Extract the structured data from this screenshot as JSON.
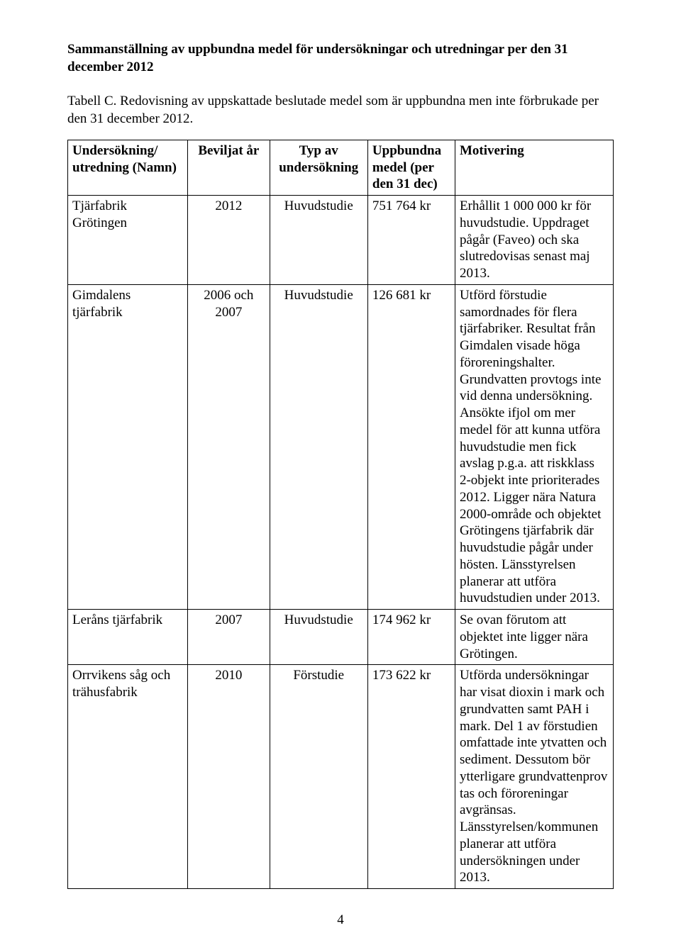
{
  "heading": "Sammanställning av uppbundna medel för undersökningar och utredningar per den 31 december 2012",
  "intro": "Tabell C. Redovisning av uppskattade beslutade medel som är uppbundna men inte förbrukade per den 31 december 2012.",
  "table": {
    "columns": [
      "Undersökning/ utredning (Namn)",
      "Beviljat år",
      "Typ av undersökning",
      "Uppbundna medel (per den 31 dec)",
      "Motivering"
    ],
    "col_align": [
      "left",
      "center",
      "center",
      "left",
      "left"
    ],
    "header_align": [
      "left",
      "center",
      "center",
      "left",
      "left"
    ],
    "rows": [
      {
        "name": "Tjärfabrik Grötingen",
        "year": "2012",
        "type": "Huvudstudie",
        "amount": "751 764 kr",
        "motivation": "Erhållit 1 000 000 kr för huvudstudie. Uppdraget pågår (Faveo) och ska slutredovisas senast maj 2013."
      },
      {
        "name": "Gimdalens tjärfabrik",
        "year": "2006 och 2007",
        "type": "Huvudstudie",
        "amount": "126 681 kr",
        "motivation": "Utförd förstudie samordnades för flera tjärfabriker. Resultat från Gimdalen visade höga föroreningshalter. Grundvatten provtogs inte vid denna undersökning. Ansökte ifjol om mer medel för att kunna utföra huvudstudie men fick avslag p.g.a. att riskklass 2-objekt inte prioriterades 2012. Ligger nära Natura 2000-område och objektet Grötingens tjärfabrik där huvudstudie pågår under hösten. Länsstyrelsen planerar att utföra huvudstudien under 2013."
      },
      {
        "name": "Leråns tjärfabrik",
        "year": "2007",
        "type": "Huvudstudie",
        "amount": "174 962 kr",
        "motivation": "Se ovan förutom att objektet inte ligger nära Grötingen."
      },
      {
        "name": "Orrvikens såg och trähusfabrik",
        "year": "2010",
        "type": "Förstudie",
        "amount": "173 622 kr",
        "motivation": "Utförda undersökningar har visat dioxin i mark och grundvatten samt PAH i mark. Del 1 av förstudien omfattade inte ytvatten och sediment. Dessutom bör ytterligare grundvattenprov tas och föroreningar avgränsas. Länsstyrelsen/kommunen planerar att utföra undersökningen under 2013."
      }
    ]
  },
  "page_number": "4",
  "colors": {
    "text": "#000000",
    "background": "#ffffff",
    "border": "#000000"
  },
  "fonts": {
    "body_family": "Times New Roman",
    "body_size_pt": 14,
    "heading_weight": "bold"
  }
}
